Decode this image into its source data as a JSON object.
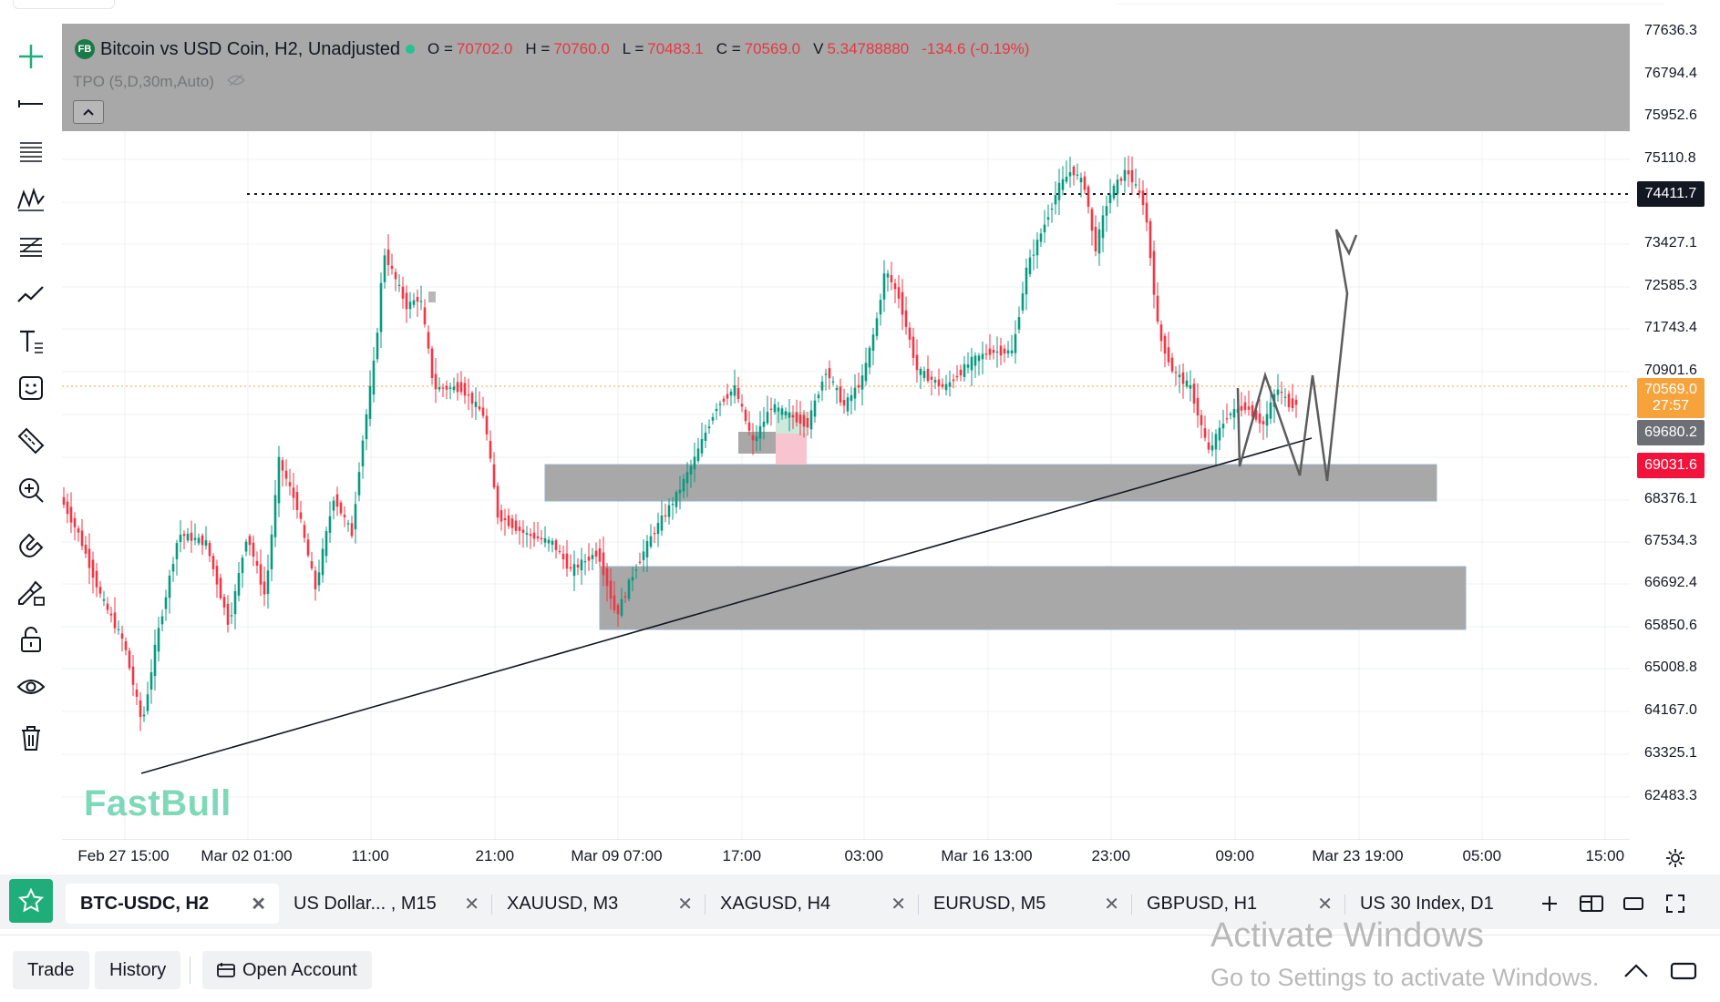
{
  "legend": {
    "badge": "FB",
    "title": "Bitcoin vs USD Coin, H2, Unadjusted",
    "o_label": "O =",
    "o": "70702.0",
    "h_label": "H =",
    "h": "70760.0",
    "l_label": "L =",
    "l": "70483.1",
    "c_label": "C =",
    "c": "70569.0",
    "v_label": "V",
    "v": "5.34788880",
    "change": "-134.6 (-0.19%)"
  },
  "indicator": {
    "label": "TPO (5,D,30m,Auto)"
  },
  "watermark": "FastBull",
  "price_axis": {
    "ticks": [
      "77636.3",
      "76794.4",
      "75952.6",
      "75110.8",
      "73427.1",
      "72585.3",
      "71743.4",
      "70901.6",
      "68376.1",
      "67534.3",
      "66692.4",
      "65850.6",
      "65008.8",
      "64167.0",
      "63325.1",
      "62483.3"
    ],
    "tag_line": "74411.7",
    "tag_last_price": "70569.0",
    "tag_countdown": "27:57",
    "tag_grey": "69680.2",
    "tag_red": "69031.6"
  },
  "time_axis": [
    "Feb 27 15:00",
    "Mar 02 01:00",
    "11:00",
    "21:00",
    "Mar 09 07:00",
    "17:00",
    "03:00",
    "Mar 16 13:00",
    "23:00",
    "09:00",
    "Mar 23 19:00",
    "05:00",
    "15:00"
  ],
  "tabs": [
    {
      "label": "BTC-USDC, H2",
      "active": true
    },
    {
      "label": "US Dollar... , M15",
      "active": false
    },
    {
      "label": "XAUUSD, M3",
      "active": false
    },
    {
      "label": "XAGUSD, H4",
      "active": false
    },
    {
      "label": "EURUSD, M5",
      "active": false
    },
    {
      "label": "GBPUSD, H1",
      "active": false
    },
    {
      "label": "US 30 Index, D1",
      "active": false
    }
  ],
  "bottom": {
    "trade": "Trade",
    "history": "History",
    "open_account": "Open Account",
    "activate_title": "Activate Windows",
    "activate_sub": "Go to Settings to activate Windows."
  },
  "colors": {
    "up": "#089981",
    "down": "#f23645",
    "zone": "#a8a8a8",
    "brand": "#1fae7a",
    "last_price": "#f7a33c"
  }
}
